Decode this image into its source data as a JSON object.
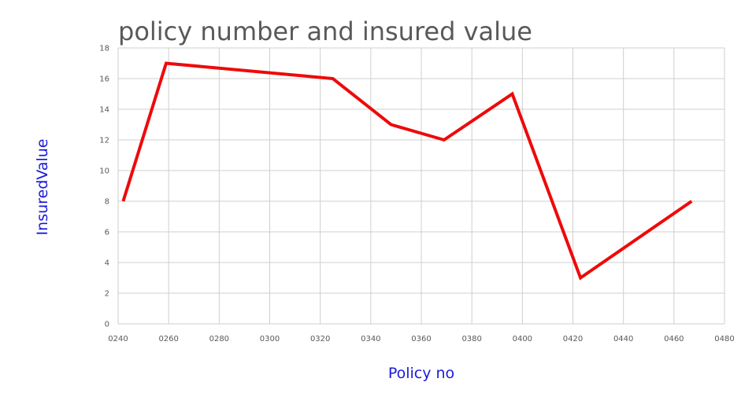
{
  "chart_data": {
    "type": "line",
    "title": "policy number and insured value",
    "xlabel": "Policy no",
    "ylabel": "InsuredValue",
    "xlim": [
      240,
      480
    ],
    "ylim": [
      0,
      18
    ],
    "x_ticks": [
      "0240",
      "0260",
      "0280",
      "0300",
      "0320",
      "0340",
      "0360",
      "0380",
      "0400",
      "0420",
      "0440",
      "0460",
      "0480"
    ],
    "y_ticks": [
      "0",
      "2",
      "4",
      "6",
      "8",
      "10",
      "12",
      "14",
      "16",
      "18"
    ],
    "grid": true,
    "series": [
      {
        "color": "#ee0a0a",
        "points": [
          {
            "x": 242,
            "y": 8
          },
          {
            "x": 259,
            "y": 17
          },
          {
            "x": 325,
            "y": 16
          },
          {
            "x": 348,
            "y": 13
          },
          {
            "x": 369,
            "y": 12
          },
          {
            "x": 396,
            "y": 15
          },
          {
            "x": 423,
            "y": 3
          },
          {
            "x": 467,
            "y": 8
          }
        ]
      }
    ]
  }
}
